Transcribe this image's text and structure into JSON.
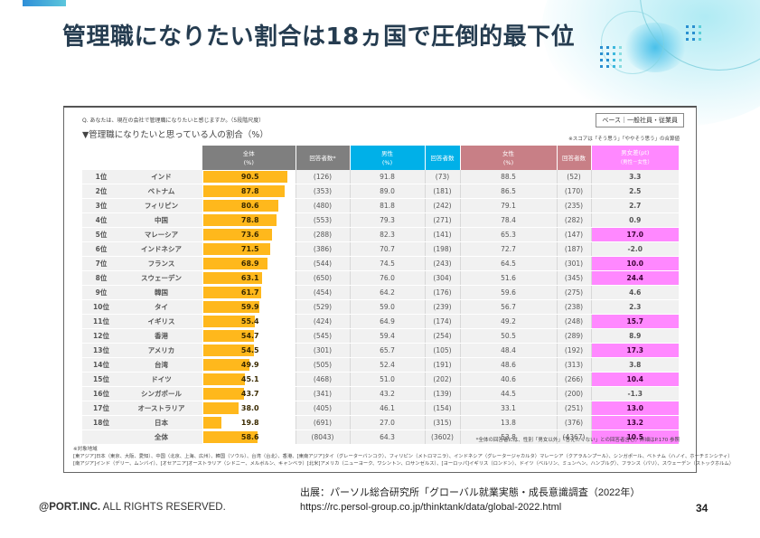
{
  "slide": {
    "title": "管理職になりたい割合は18ヵ国で圧倒的最下位",
    "page_number": "34"
  },
  "survey": {
    "question": "Q. あなたは、現在の会社で管理職になりたいと感じますか。（5段階尺度）",
    "subtitle": "▼管理職になりたいと思っている人の割合（%）",
    "base_label": "ベース｜一般社員・従業員",
    "score_note": "※スコアは「そう思う」「ややそう思う」の合算値",
    "columns": {
      "total": "全体",
      "total_unit": "(%)",
      "n_total": "回答者数*",
      "male": "男性",
      "male_unit": "(%)",
      "n_male": "回答者数",
      "female": "女性",
      "female_unit": "(%)",
      "n_female": "回答者数",
      "diff": "男女差(pt)",
      "diff_sub": "（男性－女性）"
    },
    "colors": {
      "total_header": "#7f7f7f",
      "male_header": "#00b0e8",
      "female_header": "#c87f86",
      "diff_header": "#ff88ff",
      "bar": "#ffb81c",
      "highlight": "#ff88ff"
    },
    "bar_max": 100,
    "rows": [
      {
        "rank": "1位",
        "country": "インド",
        "total": "90.5",
        "total_value": 90.5,
        "n_total": "(126)",
        "male": "91.8",
        "n_male": "(73)",
        "female": "88.5",
        "n_female": "(52)",
        "diff": "3.3",
        "highlight": false
      },
      {
        "rank": "2位",
        "country": "ベトナム",
        "total": "87.8",
        "total_value": 87.8,
        "n_total": "(353)",
        "male": "89.0",
        "n_male": "(181)",
        "female": "86.5",
        "n_female": "(170)",
        "diff": "2.5",
        "highlight": false
      },
      {
        "rank": "3位",
        "country": "フィリピン",
        "total": "80.6",
        "total_value": 80.6,
        "n_total": "(480)",
        "male": "81.8",
        "n_male": "(242)",
        "female": "79.1",
        "n_female": "(235)",
        "diff": "2.7",
        "highlight": false
      },
      {
        "rank": "4位",
        "country": "中国",
        "total": "78.8",
        "total_value": 78.8,
        "n_total": "(553)",
        "male": "79.3",
        "n_male": "(271)",
        "female": "78.4",
        "n_female": "(282)",
        "diff": "0.9",
        "highlight": false
      },
      {
        "rank": "5位",
        "country": "マレーシア",
        "total": "73.6",
        "total_value": 73.6,
        "n_total": "(288)",
        "male": "82.3",
        "n_male": "(141)",
        "female": "65.3",
        "n_female": "(147)",
        "diff": "17.0",
        "highlight": true
      },
      {
        "rank": "6位",
        "country": "インドネシア",
        "total": "71.5",
        "total_value": 71.5,
        "n_total": "(386)",
        "male": "70.7",
        "n_male": "(198)",
        "female": "72.7",
        "n_female": "(187)",
        "diff": "-2.0",
        "highlight": false
      },
      {
        "rank": "7位",
        "country": "フランス",
        "total": "68.9",
        "total_value": 68.9,
        "n_total": "(544)",
        "male": "74.5",
        "n_male": "(243)",
        "female": "64.5",
        "n_female": "(301)",
        "diff": "10.0",
        "highlight": true
      },
      {
        "rank": "8位",
        "country": "スウェーデン",
        "total": "63.1",
        "total_value": 63.1,
        "n_total": "(650)",
        "male": "76.0",
        "n_male": "(304)",
        "female": "51.6",
        "n_female": "(345)",
        "diff": "24.4",
        "highlight": true
      },
      {
        "rank": "9位",
        "country": "韓国",
        "total": "61.7",
        "total_value": 61.7,
        "n_total": "(454)",
        "male": "64.2",
        "n_male": "(176)",
        "female": "59.6",
        "n_female": "(275)",
        "diff": "4.6",
        "highlight": false
      },
      {
        "rank": "10位",
        "country": "タイ",
        "total": "59.9",
        "total_value": 59.9,
        "n_total": "(529)",
        "male": "59.0",
        "n_male": "(239)",
        "female": "56.7",
        "n_female": "(238)",
        "diff": "2.3",
        "highlight": false
      },
      {
        "rank": "11位",
        "country": "イギリス",
        "total": "55.4",
        "total_value": 55.4,
        "n_total": "(424)",
        "male": "64.9",
        "n_male": "(174)",
        "female": "49.2",
        "n_female": "(248)",
        "diff": "15.7",
        "highlight": true
      },
      {
        "rank": "12位",
        "country": "香港",
        "total": "54.7",
        "total_value": 54.7,
        "n_total": "(545)",
        "male": "59.4",
        "n_male": "(254)",
        "female": "50.5",
        "n_female": "(289)",
        "diff": "8.9",
        "highlight": false
      },
      {
        "rank": "13位",
        "country": "アメリカ",
        "total": "54.5",
        "total_value": 54.5,
        "n_total": "(301)",
        "male": "65.7",
        "n_male": "(105)",
        "female": "48.4",
        "n_female": "(192)",
        "diff": "17.3",
        "highlight": true
      },
      {
        "rank": "14位",
        "country": "台湾",
        "total": "49.9",
        "total_value": 49.9,
        "n_total": "(505)",
        "male": "52.4",
        "n_male": "(191)",
        "female": "48.6",
        "n_female": "(313)",
        "diff": "3.8",
        "highlight": false
      },
      {
        "rank": "15位",
        "country": "ドイツ",
        "total": "45.1",
        "total_value": 45.1,
        "n_total": "(468)",
        "male": "51.0",
        "n_male": "(202)",
        "female": "40.6",
        "n_female": "(266)",
        "diff": "10.4",
        "highlight": true
      },
      {
        "rank": "16位",
        "country": "シンガポール",
        "total": "43.7",
        "total_value": 43.7,
        "n_total": "(341)",
        "male": "43.2",
        "n_male": "(139)",
        "female": "44.5",
        "n_female": "(200)",
        "diff": "-1.3",
        "highlight": false
      },
      {
        "rank": "17位",
        "country": "オーストラリア",
        "total": "38.0",
        "total_value": 38.0,
        "n_total": "(405)",
        "male": "46.1",
        "n_male": "(154)",
        "female": "33.1",
        "n_female": "(251)",
        "diff": "13.0",
        "highlight": true
      },
      {
        "rank": "18位",
        "country": "日本",
        "total": "19.8",
        "total_value": 19.8,
        "n_total": "(691)",
        "male": "27.0",
        "n_male": "(315)",
        "female": "13.8",
        "n_female": "(376)",
        "diff": "13.2",
        "highlight": true
      },
      {
        "rank": "",
        "country": "全体",
        "total": "58.6",
        "total_value": 58.6,
        "n_total": "(8043)",
        "male": "64.3",
        "n_male": "(3602)",
        "female": "53.8",
        "n_female": "(4367)",
        "diff": "10.5",
        "highlight": true
      }
    ],
    "footnote": "*全体の回答者には、性別「男女以外」「答えたくない」との回答者含む。詳細はP.170 参照",
    "region_label": "※対象地域",
    "region_line1": "[東アジア]日本（東京、大阪、愛知）、中国（北京、上海、広州）、韓国（ソウル）、台湾（台北）、香港、[東南アジア]タイ（グレーターバンコク）、フィリピン（メトロマニラ）、インドネシア（グレータージャカルタ）マレーシア（クアラルンプール）、シンガポール、ベトナム（ハノイ、ホーチミンシティ）",
    "region_line2": "[南アジア]インド（デリー、ムンバイ）、[オセアニア]オーストラリア（シドニー、メルボルン、キャンベラ）[北米]アメリカ（ニューヨーク、ワシントン、ロサンゼルス）、[ヨーロッパ]イギリス（ロンドン）、ドイツ（ベルリン、ミュンヘン、ハンブルグ）、フランス（パリ）、スウェーデン（ストックホルム）"
  },
  "footer": {
    "copyright_bold": "@PORT.INC.",
    "copyright_rest": " ALL RIGHTS RESERVED.",
    "source_line1": "出展：パーソル総合研究所「グローバル就業実態・成長意識調査（2022年）",
    "source_line2": "https://rc.persol-group.co.jp/thinktank/data/global-2022.html"
  }
}
